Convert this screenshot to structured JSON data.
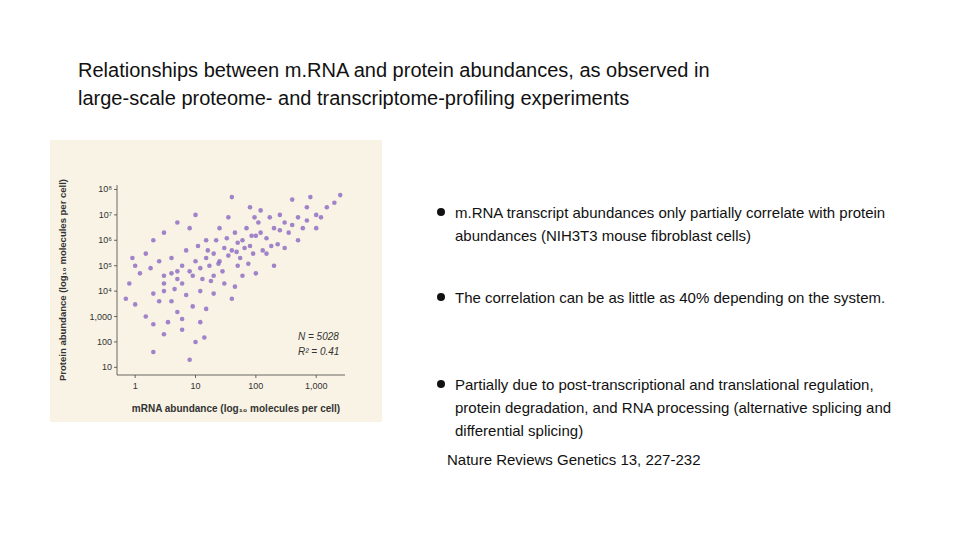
{
  "slide": {
    "title": [
      "Relationships between m.RNA and protein abundances, as observed in",
      "large-scale proteome- and transcriptome-profiling experiments"
    ],
    "bullets": [
      "m.RNA transcript abundances only partially correlate with protein abundances (NIH3T3 mouse fibroblast cells)",
      "The correlation can be as little as 40% depending on the system.",
      "Partially due to post-transcriptional and translational regulation, protein degradation, and RNA processing (alternative splicing and differential splicing)"
    ],
    "source": "Nature Reviews Genetics 13, 227-232"
  },
  "chart_data": {
    "type": "scatter",
    "x_label": "mRNA abundance (log₁₀ molecules per cell)",
    "y_label": "Protein abundance (log₁₀ molecules per cell)",
    "annotations": [
      "N = 5028",
      "R² = 0.41"
    ],
    "log": true,
    "grid": false,
    "marker": "circle",
    "color": "#8b66c2",
    "xlim": [
      0.5,
      3000
    ],
    "ylim": [
      5,
      150000000
    ],
    "xticks": [
      1,
      10,
      100,
      {
        "value": 1000,
        "label": "1,000"
      }
    ],
    "yticks": [
      {
        "value": 100000000,
        "label": "10⁸"
      },
      {
        "value": 10000000,
        "label": "10⁷"
      },
      {
        "value": 1000000,
        "label": "10⁶"
      },
      {
        "value": 100000,
        "label": "10⁵"
      },
      {
        "value": 10000,
        "label": "10⁴"
      },
      {
        "value": 1000,
        "label": "1,000"
      },
      100,
      10
    ],
    "x": [
      2,
      3,
      4,
      5,
      6,
      8,
      10,
      12,
      15,
      20,
      25,
      30,
      40,
      50,
      60,
      80,
      100,
      120,
      150,
      200,
      250,
      300,
      400,
      500,
      700,
      1000,
      1500,
      2000,
      1,
      1.5,
      2,
      3,
      1,
      1.5,
      2,
      3,
      4,
      5,
      6,
      8,
      10,
      12,
      15,
      20,
      3,
      5,
      8,
      10,
      15,
      20,
      30,
      40,
      50,
      60,
      80,
      100,
      150,
      200,
      300,
      400,
      500,
      700,
      1000,
      3,
      4,
      6,
      7,
      9,
      11,
      13,
      17,
      22,
      28,
      35,
      45,
      55,
      70,
      90,
      110,
      130,
      170,
      230,
      350,
      0.8,
      0.7,
      0.9,
      1.2,
      1.8,
      2.5,
      2.5,
      3.5,
      4.5,
      7,
      9,
      12,
      18,
      25,
      35,
      45,
      65,
      85,
      120,
      180,
      250,
      600,
      800,
      1200,
      2500,
      40,
      6,
      14,
      2,
      5,
      16,
      24,
      33,
      48,
      75,
      95
    ],
    "values": [
      8000,
      20000,
      50000,
      30000,
      100000,
      60000,
      150000,
      80000,
      200000,
      300000,
      150000,
      500000,
      400000,
      800000,
      1000000,
      600000,
      1500000,
      2000000,
      1200000,
      3000000,
      2500000,
      5000000,
      4000000,
      8000000,
      6000000,
      10000000,
      20000000,
      30000000,
      3000,
      1000,
      500,
      200,
      100000,
      300000,
      1000000,
      40000,
      4000,
      1500,
      300,
      20,
      100,
      600,
      2000,
      8000,
      2000000,
      5000000,
      3000000,
      10000000,
      1000000,
      40000,
      20000,
      5000,
      100000,
      40000,
      20000000,
      50000,
      300000,
      100000,
      500000,
      40000000,
      1000000,
      20000000,
      3000000,
      10000,
      200000,
      20000,
      400000,
      40000,
      600000,
      30000,
      100000,
      1000000,
      60000,
      250000,
      2000000,
      200000,
      3000000,
      300000,
      5000000,
      400000,
      8000000,
      700000,
      2000000,
      20000,
      5000,
      200000,
      50000,
      80000,
      150000,
      4000,
      600,
      12000,
      7000,
      2500,
      10000,
      25000,
      3000000,
      8000000,
      15000,
      500000,
      1500000,
      15000000,
      600000,
      10000000,
      3000000,
      50000000,
      8000000,
      60000000,
      50000000,
      800,
      150,
      40,
      60000,
      400000,
      120000,
      1200000,
      350000,
      120000,
      8000000
    ]
  }
}
